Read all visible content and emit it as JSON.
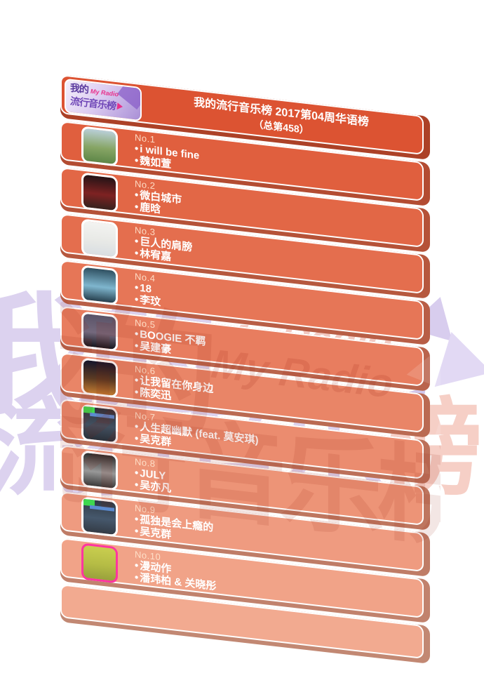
{
  "ui": {
    "bullet": "•"
  },
  "logo": {
    "cjk_top": "我的",
    "latin": "My Radio",
    "cjk_bottom": "流行音乐榜"
  },
  "header": {
    "line1": "我的流行音乐榜 2017第04周华语榜",
    "line2": "（总第458）"
  },
  "watermark": {
    "cjk_top": "我的",
    "latin": "My Radio",
    "cjk_bottom_a": "流行音乐",
    "cjk_bottom_b": "榜"
  },
  "colors": {
    "page_bg": "#ffffff",
    "header_face": "#DC5332",
    "empty_face": "#F2AA90",
    "rank_text": "rgba(255,228,205,0.92)",
    "row_text": "#ffffff",
    "wm_purple": "#DCD2EF",
    "wm_purple_tri1": "#D8CDEE",
    "wm_purple_tri2": "#E2D9F4",
    "wm_purple_tri3": "#D2C6EA",
    "wm_pink": "#F2C9C1",
    "wm_pink2": "#F6CFC6",
    "art_tab_green": "#3FD84F",
    "art_bar_blue": "#5B8BD0"
  },
  "rows": [
    {
      "rank": "No.1",
      "song": "i will be fine",
      "artist": "魏如萱",
      "face": "#E05F3E",
      "art": {
        "colors": [
          "#B9CFD8",
          "#87A565",
          "#5E8748"
        ]
      }
    },
    {
      "rank": "No.2",
      "song": "微白城市",
      "artist": "鹿晗",
      "face": "#E26746",
      "art": {
        "colors": [
          "#231316",
          "#7E2222",
          "#37221E"
        ]
      }
    },
    {
      "rank": "No.3",
      "song": "巨人的肩膀",
      "artist": "林宥嘉",
      "face": "#E46E4E",
      "art": {
        "colors": [
          "#F3F3F1",
          "#E8E9E6",
          "#D9DEE2"
        ]
      }
    },
    {
      "rank": "No.4",
      "song": "18",
      "artist": "李玟",
      "face": "#E67657",
      "art": {
        "colors": [
          "#2F5061",
          "#7FB6CE",
          "#27404E"
        ]
      }
    },
    {
      "rank": "No.5",
      "song": "BOOGIE 不羁",
      "artist": "吴建豪",
      "face": "#E87D5F",
      "art": {
        "colors": [
          "#5A5368",
          "#74697D",
          "#17171E"
        ]
      }
    },
    {
      "rank": "No.6",
      "song": "让我留在你身边",
      "artist": "陈奕迅",
      "face": "#E98567",
      "art": {
        "colors": [
          "#15152B",
          "#5C3B23",
          "#C07A31"
        ]
      }
    },
    {
      "rank": "No.7",
      "song": "人生超幽默 (feat. 莫安琪)",
      "artist": "吴克群",
      "face": "#EB8C6F",
      "art": {
        "colors": [
          "#2A333E",
          "#435060",
          "#2B313A"
        ],
        "tab": true
      }
    },
    {
      "rank": "No.8",
      "song": "JULY",
      "artist": "吴亦凡",
      "face": "#ED9477",
      "art": {
        "colors": [
          "#2D2D2D",
          "#989898",
          "#3B3B3B"
        ]
      }
    },
    {
      "rank": "No.9",
      "song": "孤独是会上瘾的",
      "artist": "吴克群",
      "face": "#EF9B80",
      "art": {
        "colors": [
          "#2F3945",
          "#46586C",
          "#343C46"
        ],
        "tab": true
      }
    },
    {
      "rank": "No.10",
      "song": "漫动作",
      "artist": "潘玮柏 & 关晓彤",
      "face": "#F1A388",
      "art": {
        "colors": [
          "#C9CE4F",
          "#B5BC45",
          "#99A13C"
        ],
        "frame": "#FF35A0"
      }
    }
  ]
}
